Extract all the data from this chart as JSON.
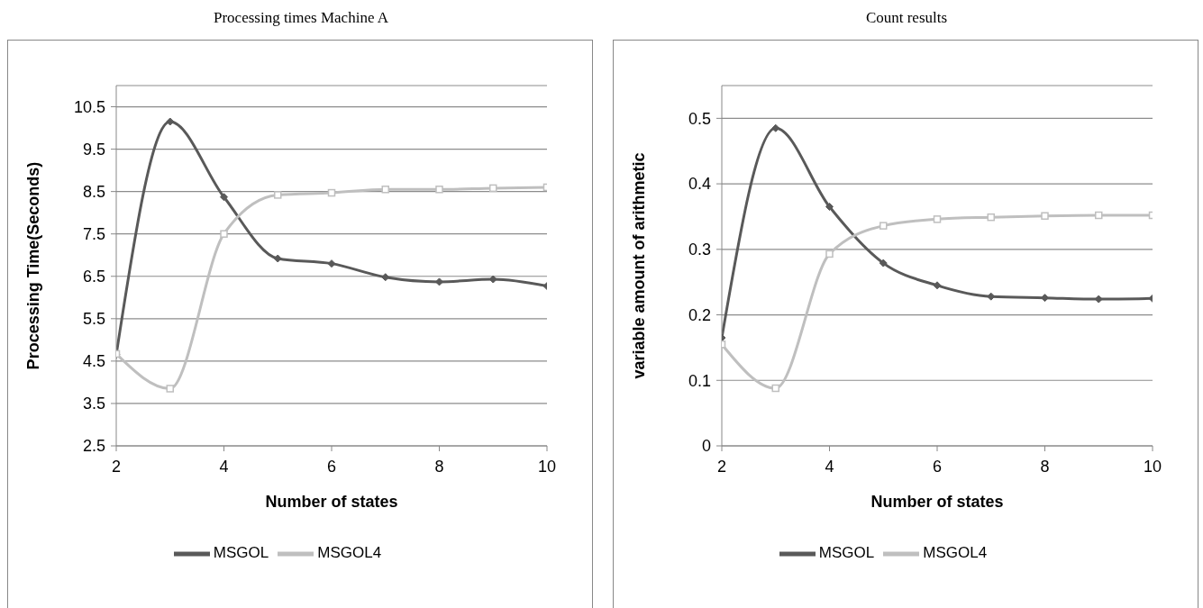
{
  "chart_data": [
    {
      "type": "line",
      "title": "Processing times Machine A",
      "xlabel": "Number of states",
      "ylabel": "Processing Time(Seconds)",
      "x": [
        2,
        3,
        4,
        5,
        6,
        7,
        8,
        9,
        10
      ],
      "xlim": [
        2,
        10
      ],
      "xticks": [
        2,
        4,
        6,
        8,
        10
      ],
      "ylim": [
        2.5,
        11
      ],
      "yticks": [
        2.5,
        3.5,
        4.5,
        5.5,
        6.5,
        7.5,
        8.5,
        9.5,
        10.5
      ],
      "grid": "y",
      "legend": "bottom",
      "series": [
        {
          "name": "MSGOL",
          "color": "#595959",
          "marker": "diamond",
          "values": [
            4.65,
            10.15,
            8.37,
            6.92,
            6.8,
            6.48,
            6.37,
            6.43,
            6.27
          ]
        },
        {
          "name": "MSGOL4",
          "color": "#bfbfbf",
          "marker": "square",
          "values": [
            4.67,
            3.85,
            7.5,
            8.42,
            8.47,
            8.55,
            8.55,
            8.58,
            8.6
          ]
        }
      ]
    },
    {
      "type": "line",
      "title": "Count results",
      "xlabel": "Number of states",
      "ylabel": "variable amount of arithmetic",
      "x": [
        2,
        3,
        4,
        5,
        6,
        7,
        8,
        9,
        10
      ],
      "xlim": [
        2,
        10
      ],
      "xticks": [
        2,
        4,
        6,
        8,
        10
      ],
      "ylim": [
        0,
        0.55
      ],
      "yticks": [
        0,
        0.1,
        0.2,
        0.3,
        0.4,
        0.5
      ],
      "grid": "y",
      "legend": "bottom",
      "series": [
        {
          "name": "MSGOL",
          "color": "#595959",
          "marker": "diamond",
          "values": [
            0.165,
            0.485,
            0.365,
            0.279,
            0.245,
            0.228,
            0.226,
            0.224,
            0.225
          ]
        },
        {
          "name": "MSGOL4",
          "color": "#bfbfbf",
          "marker": "square",
          "values": [
            0.155,
            0.088,
            0.293,
            0.336,
            0.346,
            0.349,
            0.351,
            0.352,
            0.352
          ]
        }
      ]
    }
  ]
}
